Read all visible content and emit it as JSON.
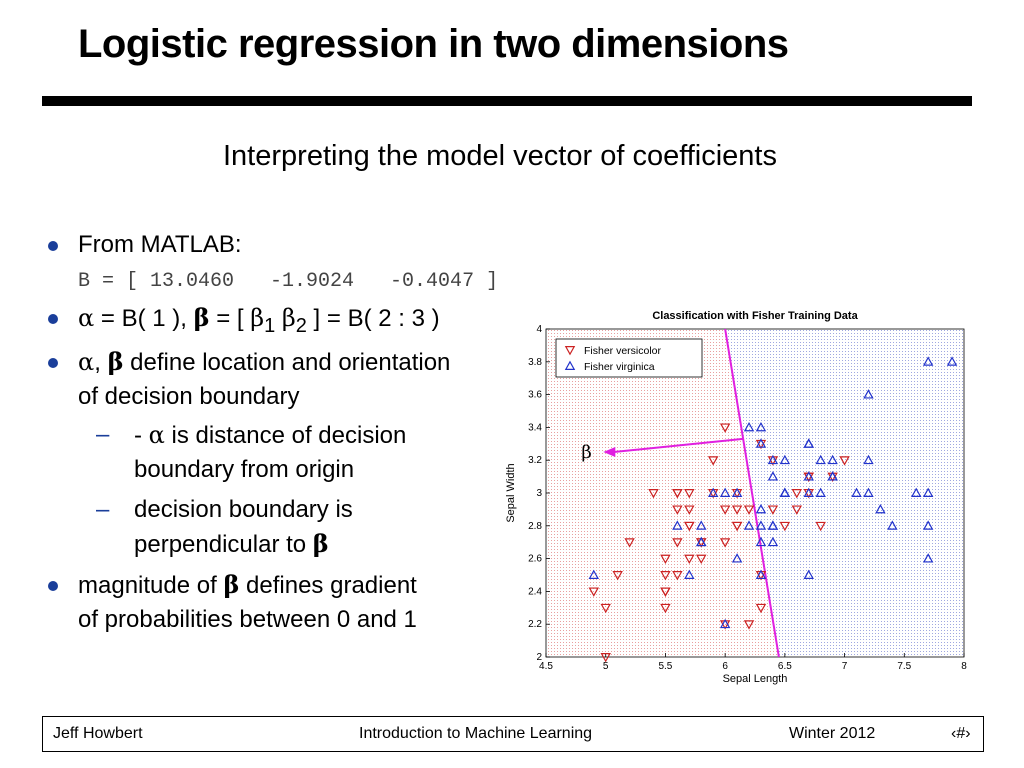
{
  "slide": {
    "title": "Logistic regression in two dimensions",
    "subtitle": "Interpreting the model vector of coefficients"
  },
  "bullets": {
    "b1_label": "From MATLAB:",
    "b1_code": "B = [ 13.0460   -1.9024   -0.4047 ]",
    "b2_alpha": "α",
    "b2_t1": " = B( 1 ), ",
    "b2_beta": "β",
    "b2_t2": " = [ ",
    "b2_beta1": "β",
    "b2_sub1": "1",
    "b2_beta2": "β",
    "b2_sub2": "2",
    "b2_t3": " ] = B( 2 : 3 )",
    "b3_alpha": "α",
    "b3_sep": ", ",
    "b3_beta": "β",
    "b3_t1": " define location and orientation",
    "b3_t2": "of decision boundary",
    "s1_t1": "- ",
    "s1_alpha": "α",
    "s1_t2": " is distance of decision",
    "s1_t3": "boundary from origin",
    "s2_t1": "decision boundary is",
    "s2_t2": "perpendicular to ",
    "s2_beta": "β",
    "b4_t1": "magnitude of ",
    "b4_beta": "β",
    "b4_t2": " defines gradient",
    "b4_t3": "of probabilities between 0 and 1",
    "dash": "–"
  },
  "footer": {
    "author": "Jeff Howbert",
    "course": "Introduction to Machine Learning",
    "term": "Winter 2012",
    "page": "‹#›"
  },
  "colors": {
    "versicolor": "#cc2222",
    "virginica": "#2233cc",
    "boundary": "#e020e0",
    "red_region": "#e8a0a0",
    "blue_region": "#a0a8e0",
    "bullet": "#1a3e9a"
  },
  "chart_data": {
    "type": "scatter",
    "title": "Classification with Fisher Training Data",
    "xlabel": "Sepal Length",
    "ylabel": "Sepal Width",
    "xlim": [
      4.5,
      8
    ],
    "ylim": [
      2,
      4
    ],
    "xticks": [
      4.5,
      5,
      5.5,
      6,
      6.5,
      7,
      7.5,
      8
    ],
    "yticks": [
      2,
      2.2,
      2.4,
      2.6,
      2.8,
      3,
      3.2,
      3.4,
      3.6,
      3.8,
      4
    ],
    "legend": "top-left",
    "boundary": {
      "x": [
        6.0,
        6.45
      ],
      "y": [
        4.0,
        2.0
      ]
    },
    "arrow_label": "β",
    "series": [
      {
        "name": "Fisher versicolor",
        "marker": "triangle-down",
        "color": "#cc2222",
        "points": [
          [
            7.0,
            3.2
          ],
          [
            6.4,
            3.2
          ],
          [
            6.9,
            3.1
          ],
          [
            5.5,
            2.3
          ],
          [
            6.5,
            2.8
          ],
          [
            5.7,
            2.8
          ],
          [
            6.3,
            3.3
          ],
          [
            4.9,
            2.4
          ],
          [
            6.6,
            2.9
          ],
          [
            5.2,
            2.7
          ],
          [
            5.0,
            2.0
          ],
          [
            5.9,
            3.0
          ],
          [
            6.0,
            2.2
          ],
          [
            6.1,
            2.9
          ],
          [
            5.6,
            2.9
          ],
          [
            6.7,
            3.1
          ],
          [
            5.6,
            3.0
          ],
          [
            5.8,
            2.7
          ],
          [
            6.2,
            2.2
          ],
          [
            5.6,
            2.5
          ],
          [
            5.9,
            3.2
          ],
          [
            6.1,
            2.8
          ],
          [
            6.3,
            2.5
          ],
          [
            6.1,
            2.8
          ],
          [
            6.4,
            2.9
          ],
          [
            6.6,
            3.0
          ],
          [
            6.8,
            2.8
          ],
          [
            6.7,
            3.0
          ],
          [
            6.0,
            2.9
          ],
          [
            5.7,
            2.6
          ],
          [
            5.5,
            2.4
          ],
          [
            5.5,
            2.4
          ],
          [
            5.8,
            2.7
          ],
          [
            6.0,
            2.7
          ],
          [
            5.4,
            3.0
          ],
          [
            6.0,
            3.4
          ],
          [
            6.7,
            3.1
          ],
          [
            6.3,
            2.3
          ],
          [
            5.6,
            3.0
          ],
          [
            5.5,
            2.5
          ],
          [
            5.5,
            2.6
          ],
          [
            6.1,
            3.0
          ],
          [
            5.8,
            2.6
          ],
          [
            5.0,
            2.3
          ],
          [
            5.6,
            2.7
          ],
          [
            5.7,
            3.0
          ],
          [
            5.7,
            2.9
          ],
          [
            6.2,
            2.9
          ],
          [
            5.1,
            2.5
          ],
          [
            5.7,
            2.8
          ]
        ]
      },
      {
        "name": "Fisher virginica",
        "marker": "triangle-up",
        "color": "#2233cc",
        "points": [
          [
            6.3,
            3.3
          ],
          [
            5.8,
            2.7
          ],
          [
            7.1,
            3.0
          ],
          [
            6.3,
            2.9
          ],
          [
            6.5,
            3.0
          ],
          [
            7.6,
            3.0
          ],
          [
            4.9,
            2.5
          ],
          [
            7.3,
            2.9
          ],
          [
            6.7,
            2.5
          ],
          [
            7.2,
            3.6
          ],
          [
            6.5,
            3.2
          ],
          [
            6.4,
            2.7
          ],
          [
            6.8,
            3.0
          ],
          [
            5.7,
            2.5
          ],
          [
            5.8,
            2.8
          ],
          [
            6.4,
            3.2
          ],
          [
            6.5,
            3.0
          ],
          [
            7.7,
            3.8
          ],
          [
            7.7,
            2.6
          ],
          [
            6.0,
            2.2
          ],
          [
            6.9,
            3.2
          ],
          [
            5.6,
            2.8
          ],
          [
            7.7,
            2.8
          ],
          [
            6.3,
            2.7
          ],
          [
            6.7,
            3.3
          ],
          [
            7.2,
            3.2
          ],
          [
            6.2,
            2.8
          ],
          [
            6.1,
            3.0
          ],
          [
            6.4,
            2.8
          ],
          [
            7.2,
            3.0
          ],
          [
            7.4,
            2.8
          ],
          [
            7.9,
            3.8
          ],
          [
            6.4,
            2.8
          ],
          [
            6.3,
            2.8
          ],
          [
            6.1,
            2.6
          ],
          [
            7.7,
            3.0
          ],
          [
            6.3,
            3.4
          ],
          [
            6.4,
            3.1
          ],
          [
            6.0,
            3.0
          ],
          [
            6.9,
            3.1
          ],
          [
            6.7,
            3.1
          ],
          [
            6.9,
            3.1
          ],
          [
            5.8,
            2.7
          ],
          [
            6.8,
            3.2
          ],
          [
            6.7,
            3.3
          ],
          [
            6.7,
            3.0
          ],
          [
            6.3,
            2.5
          ],
          [
            6.5,
            3.0
          ],
          [
            6.2,
            3.4
          ],
          [
            5.9,
            3.0
          ]
        ]
      }
    ]
  }
}
